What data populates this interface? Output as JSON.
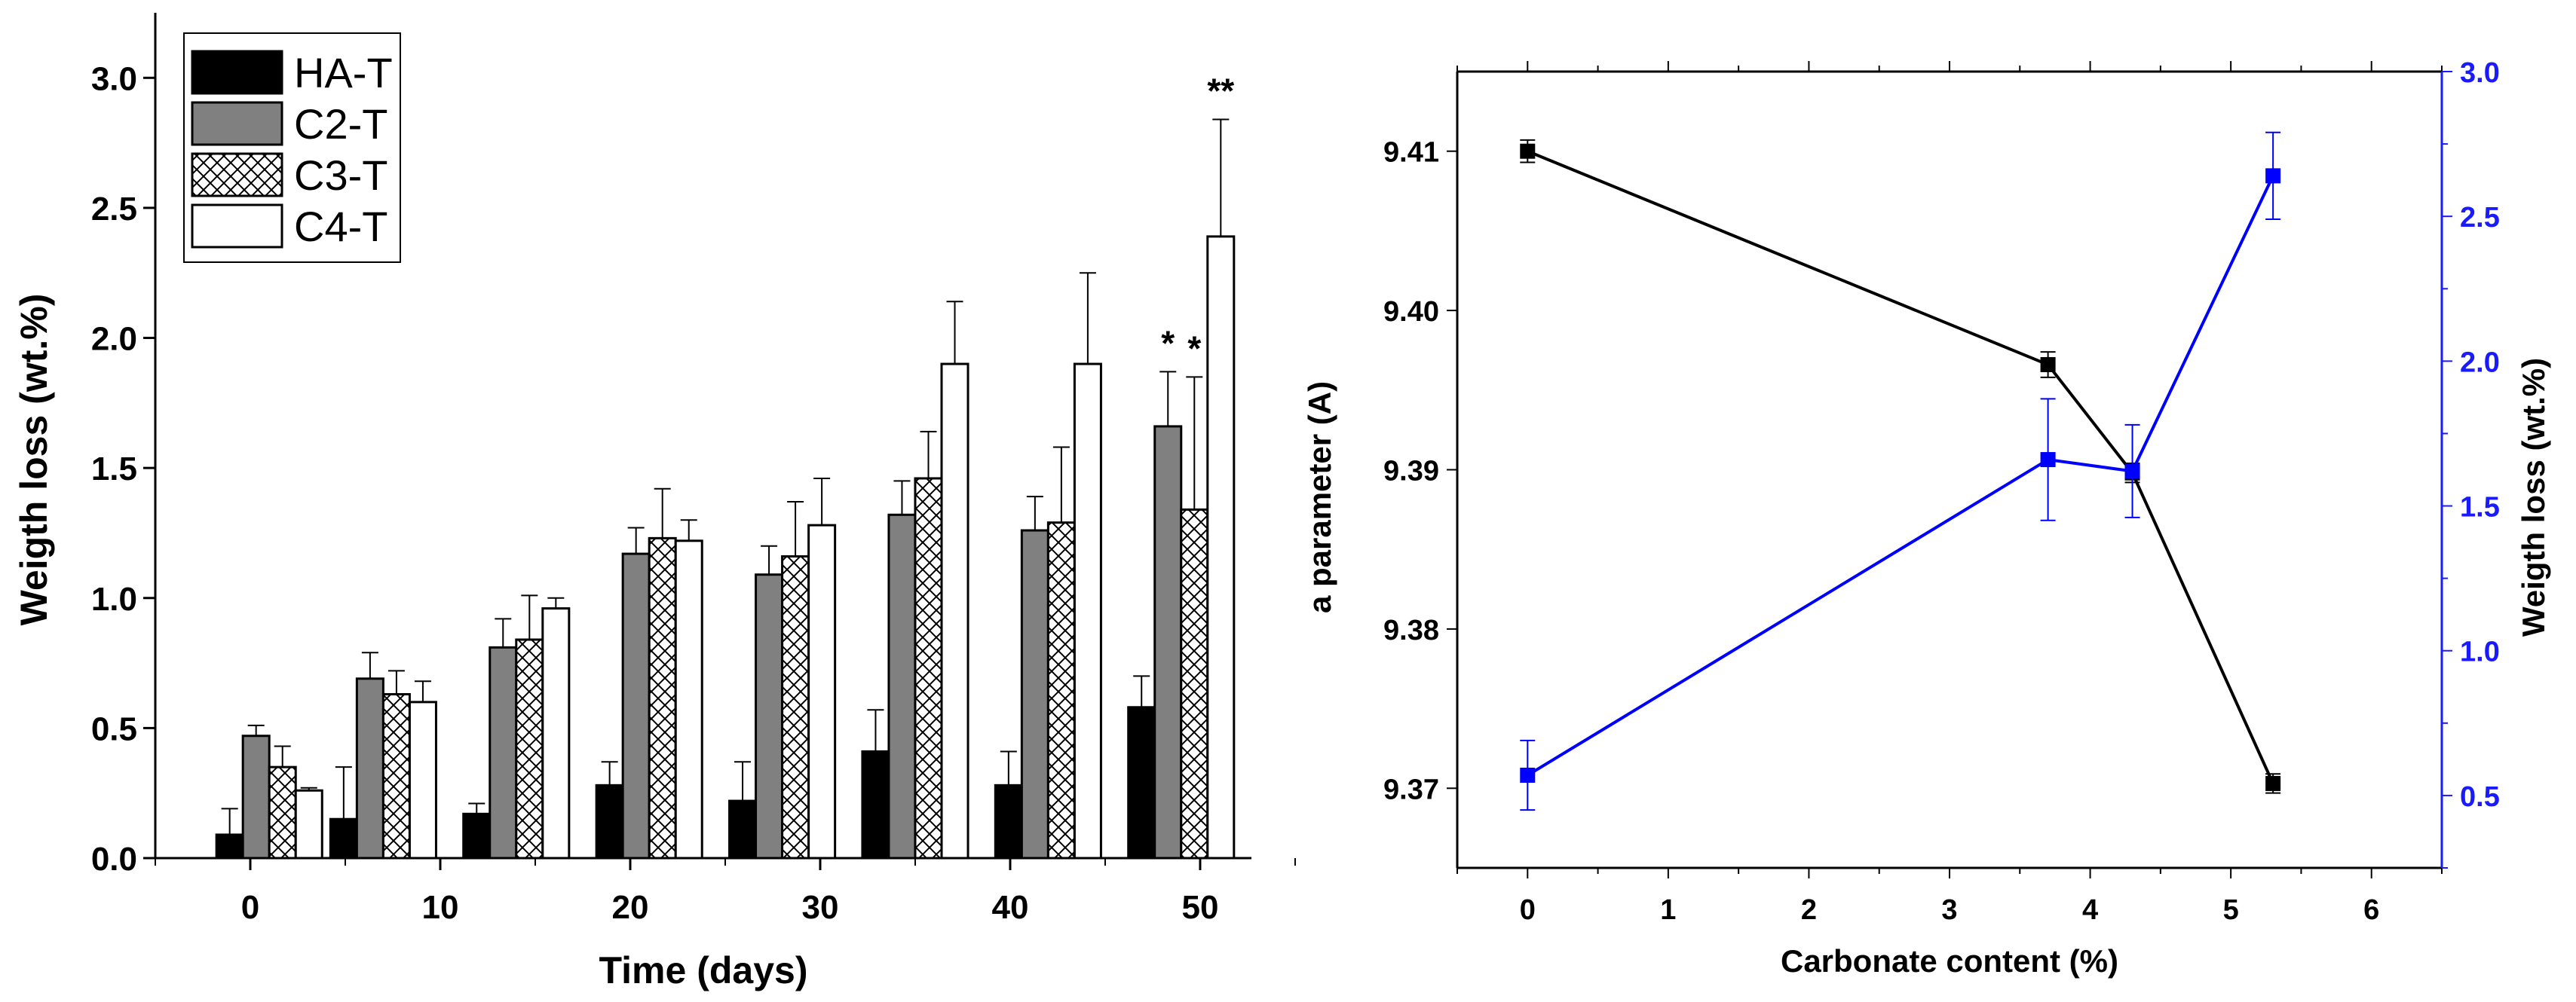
{
  "chart_data": [
    {
      "type": "bar",
      "xlabel": "Time (days)",
      "ylabel": "Weigth loss (wt.%)",
      "xlim": [
        -5,
        52.7
      ],
      "ylim": [
        0,
        3.25
      ],
      "xticks": [
        "0",
        "10",
        "20",
        "30",
        "40",
        "50"
      ],
      "yticks": [
        "0.0",
        "0.5",
        "1.0",
        "1.5",
        "2.0",
        "2.5",
        "3.0"
      ],
      "grid": false,
      "legend_position": "top-left",
      "x": [
        1,
        7,
        14,
        21,
        28,
        35,
        42,
        49
      ],
      "series": [
        {
          "name": "HA-T",
          "fill": "#000000",
          "values": [
            0.09,
            0.15,
            0.17,
            0.28,
            0.22,
            0.41,
            0.28,
            0.58
          ],
          "errors": [
            0.1,
            0.2,
            0.04,
            0.09,
            0.15,
            0.16,
            0.13,
            0.12
          ]
        },
        {
          "name": "C2-T",
          "fill": "#808080",
          "values": [
            0.47,
            0.69,
            0.81,
            1.17,
            1.09,
            1.32,
            1.26,
            1.66
          ],
          "errors": [
            0.04,
            0.1,
            0.11,
            0.1,
            0.11,
            0.13,
            0.13,
            0.21
          ]
        },
        {
          "name": "C3-T",
          "fill": "crosshatch",
          "values": [
            0.35,
            0.63,
            0.84,
            1.23,
            1.16,
            1.46,
            1.29,
            1.34
          ],
          "errors": [
            0.08,
            0.09,
            0.17,
            0.19,
            0.21,
            0.18,
            0.29,
            0.51
          ]
        },
        {
          "name": "C4-T",
          "fill": "#ffffff",
          "values": [
            0.26,
            0.6,
            0.96,
            1.22,
            1.28,
            1.9,
            1.9,
            2.39
          ],
          "errors": [
            0.01,
            0.08,
            0.04,
            0.08,
            0.18,
            0.24,
            0.35,
            0.45
          ]
        }
      ],
      "annotations": [
        {
          "text": "*",
          "series": "C2-T",
          "x": 49
        },
        {
          "text": "*",
          "series": "C3-T",
          "x": 49
        },
        {
          "text": "**",
          "series": "C4-T",
          "x": 49
        }
      ]
    },
    {
      "type": "line",
      "xlabel": "Carbonate content (%)",
      "ylabel_left": "a parameter (A)",
      "ylabel_right": "Weigth loss (wt.%)",
      "xlim": [
        -0.5,
        6.5
      ],
      "ylim_left": [
        9.365,
        9.415
      ],
      "ylim_right": [
        0.25,
        3.0
      ],
      "xticks": [
        "0",
        "1",
        "2",
        "3",
        "4",
        "5",
        "6"
      ],
      "yticks_left": [
        "9.37",
        "9.38",
        "9.39",
        "9.40",
        "9.41"
      ],
      "yticks_right": [
        "0.5",
        "1.0",
        "1.5",
        "2.0",
        "2.5",
        "3.0"
      ],
      "right_axis_color": "#1a1aff",
      "grid": false,
      "series": [
        {
          "axis": "left",
          "color": "#000000",
          "marker": "square",
          "x": [
            0,
            3.7,
            4.3,
            5.3
          ],
          "values": [
            9.41,
            9.3966,
            9.3898,
            9.3703
          ],
          "errors": [
            0.0007,
            0.0008,
            0.0006,
            0.0006
          ]
        },
        {
          "axis": "right",
          "color": "#0000ff",
          "marker": "square",
          "x": [
            0,
            3.7,
            4.3,
            5.3
          ],
          "values": [
            0.57,
            1.66,
            1.62,
            2.64
          ],
          "errors": [
            0.12,
            0.21,
            0.16,
            0.15
          ]
        }
      ]
    }
  ]
}
